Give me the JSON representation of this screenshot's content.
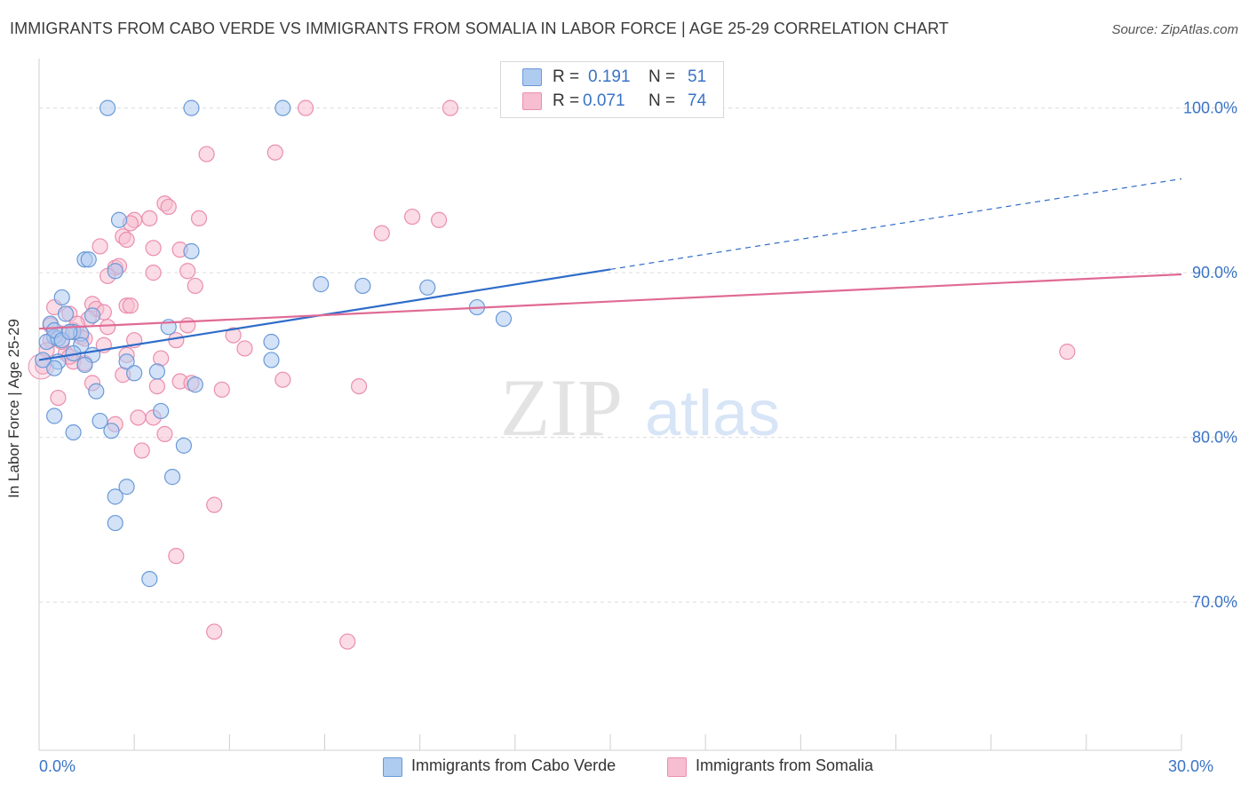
{
  "header": {
    "title": "IMMIGRANTS FROM CABO VERDE VS IMMIGRANTS FROM SOMALIA IN LABOR FORCE | AGE 25-29 CORRELATION CHART",
    "source": "Source: ZipAtlas.com"
  },
  "watermark": {
    "zip": "ZIP",
    "atlas": "atlas"
  },
  "stats": {
    "r_label": "R =",
    "n_label": "N =",
    "rows": [
      {
        "series": "Immigrants from Cabo Verde",
        "r": "0.191",
        "n": "51"
      },
      {
        "series": "Immigrants from Somalia",
        "r": "0.071",
        "n": "74"
      }
    ]
  },
  "colors": {
    "cabo_fill": "#aecbf0",
    "cabo_stroke": "#6a9ad8",
    "cabo_line": "#2f6cc9",
    "som_fill": "#f7bdd0",
    "som_stroke": "#ea8eae",
    "som_line": "#e06a95",
    "grid": "#dcdcdc",
    "tick_text": "#3a73c6"
  },
  "chart_data": {
    "type": "scatter",
    "title": "IMMIGRANTS FROM CABO VERDE VS IMMIGRANTS FROM SOMALIA IN LABOR FORCE | AGE 25-29 CORRELATION CHART",
    "xlabel": "",
    "ylabel": "In Labor Force | Age 25-29",
    "xlim": [
      0,
      30
    ],
    "ylim": [
      61,
      103
    ],
    "x_tick_labels": [
      {
        "value": 0,
        "label": "0.0%"
      },
      {
        "value": 30,
        "label": "30.0%"
      }
    ],
    "y_tick_labels": [
      {
        "value": 70,
        "label": "70.0%"
      },
      {
        "value": 80,
        "label": "80.0%"
      },
      {
        "value": 90,
        "label": "90.0%"
      },
      {
        "value": 100,
        "label": "100.0%"
      }
    ],
    "legend": [
      "Immigrants from Cabo Verde",
      "Immigrants from Somalia"
    ],
    "series": [
      {
        "name": "Immigrants from Cabo Verde",
        "r": 0.191,
        "n": 51,
        "trend": {
          "x0": 0,
          "y0": 84.7,
          "x1": 15,
          "y1": 90.2,
          "dashed_to_x": 30,
          "dashed_to_y": 95.7
        },
        "points": [
          [
            1.8,
            100
          ],
          [
            4.0,
            100
          ],
          [
            6.4,
            100
          ],
          [
            2.1,
            93.2
          ],
          [
            2.0,
            90.1
          ],
          [
            1.2,
            90.8
          ],
          [
            1.3,
            90.8
          ],
          [
            4.0,
            91.3
          ],
          [
            0.6,
            88.5
          ],
          [
            0.7,
            87.5
          ],
          [
            1.4,
            87.4
          ],
          [
            0.3,
            86.9
          ],
          [
            0.4,
            86.1
          ],
          [
            0.9,
            86.4
          ],
          [
            1.1,
            86.3
          ],
          [
            0.2,
            85.8
          ],
          [
            0.5,
            86.0
          ],
          [
            1.1,
            85.6
          ],
          [
            0.9,
            85.1
          ],
          [
            1.4,
            85.0
          ],
          [
            0.5,
            84.6
          ],
          [
            1.2,
            84.4
          ],
          [
            0.4,
            84.2
          ],
          [
            0.1,
            84.7
          ],
          [
            2.3,
            84.6
          ],
          [
            2.5,
            83.9
          ],
          [
            3.1,
            84.0
          ],
          [
            1.5,
            82.8
          ],
          [
            4.1,
            83.2
          ],
          [
            3.4,
            86.7
          ],
          [
            6.1,
            85.8
          ],
          [
            6.1,
            84.7
          ],
          [
            7.4,
            89.3
          ],
          [
            8.5,
            89.2
          ],
          [
            10.2,
            89.1
          ],
          [
            11.5,
            87.9
          ],
          [
            12.2,
            87.2
          ],
          [
            0.4,
            81.3
          ],
          [
            0.9,
            80.3
          ],
          [
            1.6,
            81.0
          ],
          [
            1.9,
            80.4
          ],
          [
            3.2,
            81.6
          ],
          [
            3.8,
            79.5
          ],
          [
            3.5,
            77.6
          ],
          [
            2.3,
            77.0
          ],
          [
            2.0,
            76.4
          ],
          [
            2.0,
            74.8
          ],
          [
            2.9,
            71.4
          ],
          [
            0.4,
            86.5
          ],
          [
            0.6,
            85.9
          ],
          [
            0.8,
            86.4
          ]
        ]
      },
      {
        "name": "Immigrants from Somalia",
        "r": 0.071,
        "n": 74,
        "trend": {
          "x0": 0,
          "y0": 86.6,
          "x1": 30,
          "y1": 89.9
        },
        "points": [
          [
            7.0,
            100
          ],
          [
            10.8,
            100
          ],
          [
            4.4,
            97.2
          ],
          [
            6.2,
            97.3
          ],
          [
            3.3,
            94.2
          ],
          [
            3.4,
            94.0
          ],
          [
            2.5,
            93.2
          ],
          [
            2.9,
            93.3
          ],
          [
            2.4,
            93.0
          ],
          [
            4.2,
            93.3
          ],
          [
            9.8,
            93.4
          ],
          [
            10.5,
            93.2
          ],
          [
            9.0,
            92.4
          ],
          [
            2.2,
            92.2
          ],
          [
            1.6,
            91.6
          ],
          [
            2.3,
            92.0
          ],
          [
            3.0,
            91.5
          ],
          [
            3.7,
            91.4
          ],
          [
            2.0,
            90.3
          ],
          [
            2.1,
            90.4
          ],
          [
            1.8,
            89.8
          ],
          [
            3.0,
            90.0
          ],
          [
            3.9,
            90.1
          ],
          [
            4.1,
            89.2
          ],
          [
            1.4,
            88.1
          ],
          [
            1.5,
            87.8
          ],
          [
            2.3,
            88.0
          ],
          [
            2.4,
            88.0
          ],
          [
            1.7,
            87.6
          ],
          [
            1.3,
            87.2
          ],
          [
            0.4,
            87.9
          ],
          [
            0.8,
            87.5
          ],
          [
            1.8,
            86.7
          ],
          [
            3.9,
            86.8
          ],
          [
            0.9,
            86.5
          ],
          [
            0.6,
            86.3
          ],
          [
            1.1,
            86.1
          ],
          [
            0.3,
            85.9
          ],
          [
            2.5,
            85.9
          ],
          [
            3.6,
            85.9
          ],
          [
            5.1,
            86.2
          ],
          [
            1.7,
            85.6
          ],
          [
            5.4,
            85.4
          ],
          [
            0.2,
            85.3
          ],
          [
            0.7,
            85.1
          ],
          [
            2.3,
            85.0
          ],
          [
            3.2,
            84.8
          ],
          [
            0.9,
            84.6
          ],
          [
            1.2,
            84.5
          ],
          [
            0.1,
            84.3
          ],
          [
            2.2,
            83.8
          ],
          [
            3.7,
            83.4
          ],
          [
            4.0,
            83.3
          ],
          [
            6.4,
            83.5
          ],
          [
            3.1,
            83.1
          ],
          [
            4.8,
            82.9
          ],
          [
            8.4,
            83.1
          ],
          [
            0.5,
            82.4
          ],
          [
            1.4,
            83.3
          ],
          [
            2.6,
            81.2
          ],
          [
            3.0,
            81.2
          ],
          [
            2.0,
            80.8
          ],
          [
            3.3,
            80.2
          ],
          [
            2.7,
            79.2
          ],
          [
            4.6,
            75.9
          ],
          [
            3.6,
            72.8
          ],
          [
            4.6,
            68.2
          ],
          [
            8.1,
            67.6
          ],
          [
            27.0,
            85.2
          ],
          [
            0.3,
            86.8
          ],
          [
            0.6,
            85.8
          ],
          [
            1.0,
            86.9
          ],
          [
            1.2,
            86.0
          ],
          [
            0.8,
            84.9
          ]
        ]
      }
    ]
  },
  "legend_items": [
    {
      "label": "Immigrants from Cabo Verde"
    },
    {
      "label": "Immigrants from Somalia"
    }
  ]
}
